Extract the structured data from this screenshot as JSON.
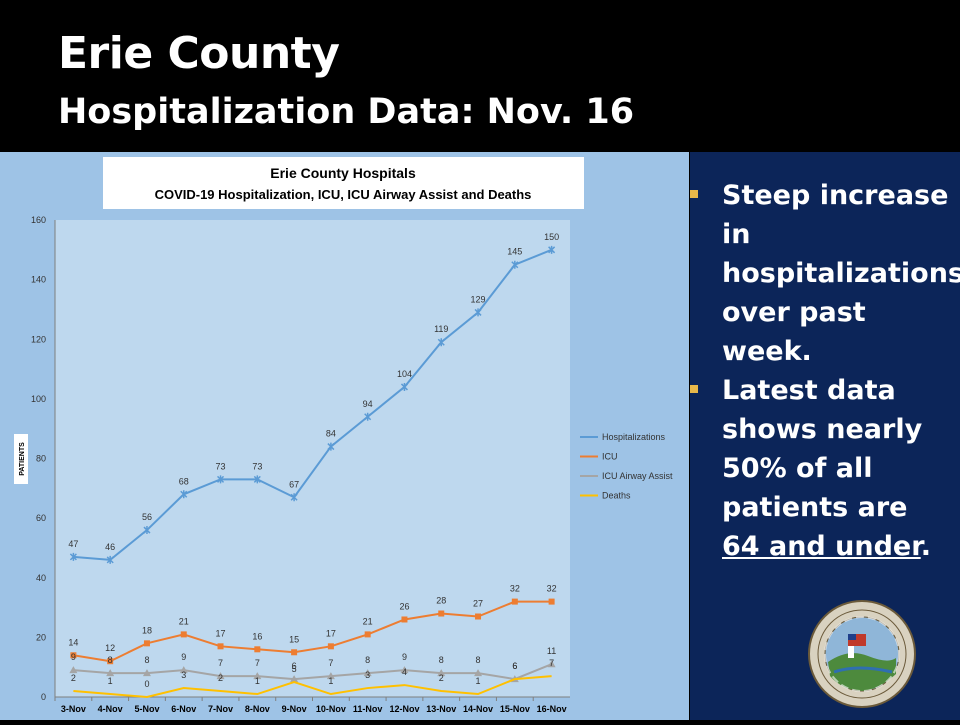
{
  "slide": {
    "title_line1": "Erie County",
    "title_line2": "Hospitalization Data: Nov. 16",
    "bullets": [
      {
        "parts": [
          {
            "text": "Steep increase in hospitalizations over past week.",
            "u": false
          }
        ]
      },
      {
        "parts": [
          {
            "text": "Latest data shows nearly 50% of all patients are ",
            "u": false
          },
          {
            "text": "64 and under",
            "u": true
          },
          {
            "text": ".",
            "u": false
          }
        ]
      }
    ],
    "colors": {
      "title_bg": "#000000",
      "right_panel": "#0c2559",
      "bullet": "#e8b84a",
      "chart_bg": "#9ec3e6",
      "plot_bg": "#bed8ee"
    },
    "seal_icon": "erie-county-seal-icon",
    "seal_text": "ERIE COUNTY STATE OF NEW YORK"
  },
  "chart_data": {
    "type": "line",
    "title": "Erie County Hospitals",
    "subtitle": "COVID-19 Hospitalization, ICU, ICU Airway Assist and Deaths",
    "ylabel": "PATIENTS",
    "xlabel": "",
    "ylim": [
      0,
      160
    ],
    "yticks": [
      0,
      20,
      40,
      60,
      80,
      100,
      120,
      140,
      160
    ],
    "categories": [
      "3-Nov",
      "4-Nov",
      "5-Nov",
      "6-Nov",
      "7-Nov",
      "8-Nov",
      "9-Nov",
      "10-Nov",
      "11-Nov",
      "12-Nov",
      "13-Nov",
      "14-Nov",
      "15-Nov",
      "16-Nov"
    ],
    "legend_position": "right",
    "grid": false,
    "series": [
      {
        "name": "Hospitalizations",
        "color": "#5b9bd5",
        "marker": "star",
        "values": [
          47,
          46,
          56,
          68,
          73,
          73,
          67,
          84,
          94,
          104,
          119,
          129,
          145,
          150
        ]
      },
      {
        "name": "ICU",
        "color": "#ed7d31",
        "marker": "square",
        "values": [
          14,
          12,
          18,
          21,
          17,
          16,
          15,
          17,
          21,
          26,
          28,
          27,
          32,
          32
        ]
      },
      {
        "name": "ICU Airway Assist",
        "color": "#a5a5a5",
        "marker": "triangle",
        "values": [
          9,
          8,
          8,
          9,
          7,
          7,
          6,
          7,
          8,
          9,
          8,
          8,
          6,
          11
        ]
      },
      {
        "name": "Deaths",
        "color": "#ffc000",
        "marker": "none",
        "values": [
          2,
          1,
          0,
          3,
          2,
          1,
          5,
          1,
          3,
          4,
          2,
          1,
          6,
          7
        ]
      }
    ]
  }
}
